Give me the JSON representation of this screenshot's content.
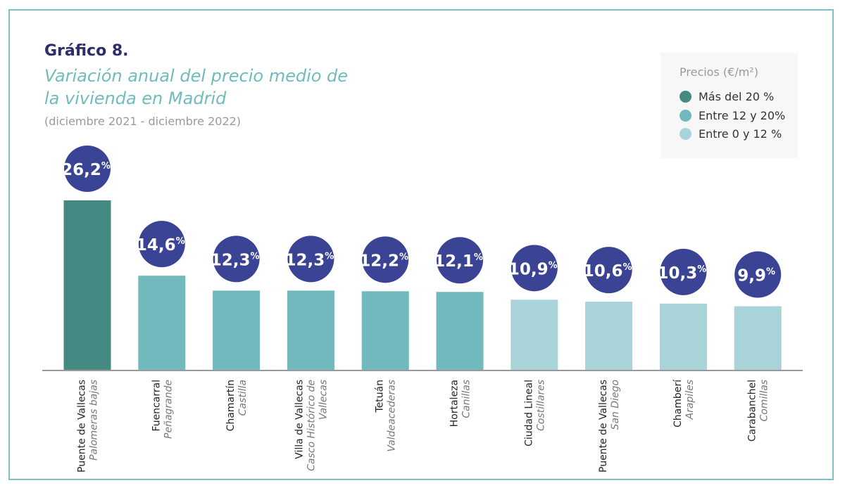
{
  "heading": "Gráfico 8.",
  "chart_data": {
    "type": "bar",
    "title": "Variación anual del precio medio de la vivienda en Madrid",
    "subtitle": "(diciembre 2021 - diciembre 2022)",
    "categories": [
      {
        "district": "Puente de Vallecas",
        "neighborhood": "Palomeras bajas"
      },
      {
        "district": "Fuencarral",
        "neighborhood": "Peñagrande"
      },
      {
        "district": "Chamartín",
        "neighborhood": "Castilla"
      },
      {
        "district": "Villa de Vallecas",
        "neighborhood": "Casco Histórico de Vallecas"
      },
      {
        "district": "Tetuán",
        "neighborhood": "Valdeacederas"
      },
      {
        "district": "Hortaleza",
        "neighborhood": "Canillas"
      },
      {
        "district": "Ciudad Lineal",
        "neighborhood": "Costillares"
      },
      {
        "district": "Puente de Vallecas",
        "neighborhood": "San Diego"
      },
      {
        "district": "Chamberí",
        "neighborhood": "Arapiles"
      },
      {
        "district": "Carabanchel",
        "neighborhood": "Comillas"
      }
    ],
    "values": [
      26.2,
      14.6,
      12.3,
      12.3,
      12.2,
      12.1,
      10.9,
      10.6,
      10.3,
      9.9
    ],
    "labels": [
      "26,2",
      "14,6",
      "12,3",
      "12,3",
      "12,2",
      "12,1",
      "10,9",
      "10,6",
      "10,3",
      "9,9"
    ],
    "unit": "%",
    "ylim": [
      0,
      28
    ],
    "grid": false,
    "legend": {
      "title": "Precios (€/m²)",
      "placement": "top-right",
      "items": [
        {
          "label": "Más del 20 %",
          "color": "#458a82"
        },
        {
          "label": "Entre 12 y 20%",
          "color": "#72b9bd"
        },
        {
          "label": "Entre 0 y 12 %",
          "color": "#a8d3d8"
        }
      ]
    },
    "bubble_color": "#3a4394"
  }
}
